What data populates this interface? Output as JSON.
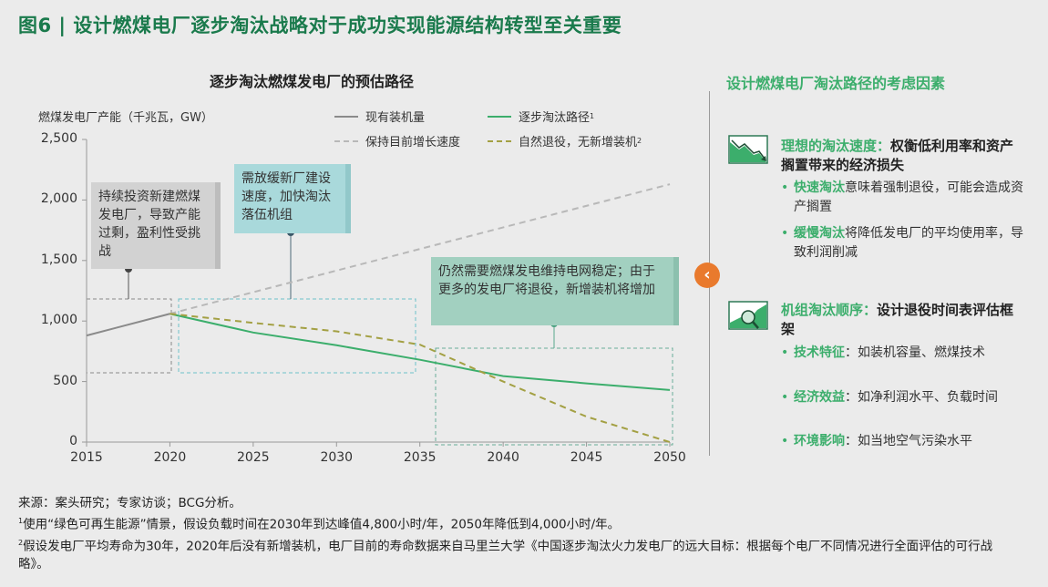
{
  "title": "图6 | 设计燃煤电厂逐步淘汰战略对于成功实现能源结构转型至关重要",
  "chart_data": {
    "type": "line",
    "title": "逐步淘汰燃煤发电厂的预估路径",
    "ylabel": "燃煤发电厂产能（千兆瓦，GW）",
    "xlabel": "",
    "xlim": [
      2015,
      2050
    ],
    "ylim": [
      0,
      2500
    ],
    "x_ticks": [
      "2015",
      "2020",
      "2025",
      "2030",
      "2035",
      "2040",
      "2045",
      "2050"
    ],
    "y_ticks": [
      "0",
      "500",
      "1,000",
      "1,500",
      "2,000",
      "2,500"
    ],
    "grid": false,
    "legend_position": "top",
    "series": [
      {
        "name": "现有装机量",
        "sup": "",
        "color": "#8a8a8a",
        "dash": false,
        "x": [
          2015,
          2020
        ],
        "y": [
          880,
          1060
        ]
      },
      {
        "name": "逐步淘汰路径",
        "sup": "1",
        "color": "#3cae6c",
        "dash": false,
        "x": [
          2020,
          2025,
          2030,
          2035,
          2040,
          2045,
          2050
        ],
        "y": [
          1060,
          905,
          800,
          680,
          545,
          485,
          430
        ]
      },
      {
        "name": "保持目前增长速度",
        "sup": "",
        "color": "#b8b8b8",
        "dash": true,
        "x": [
          2020,
          2050
        ],
        "y": [
          1060,
          2130
        ]
      },
      {
        "name": "自然退役，无新增装机",
        "sup": "2",
        "color": "#a3a043",
        "dash": true,
        "x": [
          2020,
          2025,
          2030,
          2035,
          2040,
          2045,
          2050
        ],
        "y": [
          1060,
          985,
          915,
          805,
          500,
          210,
          0
        ]
      }
    ],
    "annotations": [
      {
        "text": "持续投资新建燃煤发电厂，导致产能过剩，盈利性受挑战",
        "color": "#d2d2d2",
        "range_x": [
          2015,
          2020
        ]
      },
      {
        "text": "需放缓新厂建设速度，加快淘汰落伍机组",
        "color": "#a9d9db",
        "range_x": [
          2020,
          2035
        ]
      },
      {
        "text": "仍然需要燃煤发电维持电网稳定；由于更多的发电厂将退役，新增装机将增加",
        "color": "#a2d0c0",
        "range_x": [
          2036,
          2050
        ]
      }
    ]
  },
  "right_panel": {
    "title": "设计燃煤电厂淘汰路径的考虑因素",
    "sections": [
      {
        "icon": "declining-chart-icon",
        "head_green": "理想的淘汰速度：",
        "head_black": "权衡低利用率和资产搁置带来的经济损失",
        "bullets": [
          {
            "bold": "快速淘汰",
            "text": "意味着强制退役，可能会造成资产搁置"
          },
          {
            "bold": "缓慢淘汰",
            "text": "将降低发电厂的平均使用率，导致利润削减"
          }
        ]
      },
      {
        "icon": "magnifier-chart-icon",
        "head_green": "机组淘汰顺序：",
        "head_black": "设计退役时间表评估框架",
        "bullets": [
          {
            "bold": "技术特征",
            "text": "：如装机容量、燃煤技术"
          },
          {
            "bold": "经济效益",
            "text": "：如净利润水平、负载时间"
          },
          {
            "bold": "环境影响",
            "text": "：如当地空气污染水平"
          }
        ]
      }
    ]
  },
  "collapse_button": "‹",
  "footer": {
    "source": "来源：案头研究；专家访谈；BCG分析。",
    "note1_mark": "1",
    "note1": "使用“绿色可再生能源”情景，假设负载时间在2030年到达峰值4,800小时/年，2050年降低到4,000小时/年。",
    "note2_mark": "2",
    "note2": "假设发电厂平均寿命为30年，2020年后没有新增装机，电厂目前的寿命数据来自马里兰大学《中国逐步淘汰火力发电厂的远大目标：根据每个电厂不同情况进行全面评估的可行战略》。"
  }
}
